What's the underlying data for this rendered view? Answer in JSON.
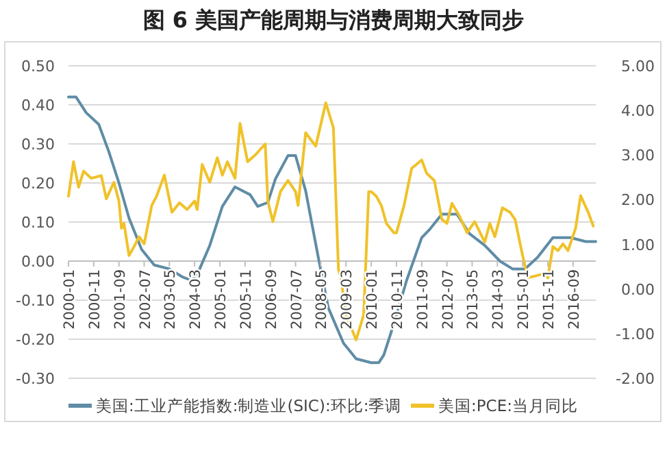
{
  "chart_data": {
    "type": "line",
    "title": "图 6  美国产能周期与消费周期大致同步",
    "xlim": [
      "2000-01",
      "2017-06"
    ],
    "xticks": [
      "2000-01",
      "2000-11",
      "2001-09",
      "2002-07",
      "2003-05",
      "2004-03",
      "2005-01",
      "2005-11",
      "2006-09",
      "2007-07",
      "2008-05",
      "2009-03",
      "2010-01",
      "2010-11",
      "2011-09",
      "2012-07",
      "2013-05",
      "2014-03",
      "2015-01",
      "2015-11",
      "2016-09"
    ],
    "ylim": [
      -0.3,
      0.5
    ],
    "yticks": [
      {
        "value": -0.3,
        "label": "-0.30"
      },
      {
        "value": -0.2,
        "label": "-0.20"
      },
      {
        "value": -0.1,
        "label": "-0.10"
      },
      {
        "value": 0,
        "label": "0.00"
      },
      {
        "value": 0.1,
        "label": "0.10"
      },
      {
        "value": 0.2,
        "label": "0.20"
      },
      {
        "value": 0.3,
        "label": "0.30"
      },
      {
        "value": 0.4,
        "label": "0.40"
      },
      {
        "value": 0.5,
        "label": "0.50"
      }
    ],
    "y2lim": [
      -2,
      5
    ],
    "y2ticks": [
      {
        "value": -2,
        "label": "-2.00"
      },
      {
        "value": -1,
        "label": "-1.00"
      },
      {
        "value": 0,
        "label": "0.00"
      },
      {
        "value": 1,
        "label": "1.00"
      },
      {
        "value": 2,
        "label": "2.00"
      },
      {
        "value": 3,
        "label": "3.00"
      },
      {
        "value": 4,
        "label": "4.00"
      },
      {
        "value": 5,
        "label": "5.00"
      }
    ],
    "grid": "y",
    "legend": "bottom",
    "marker": "none",
    "series": [
      {
        "name": "美国:工业产能指数:制造业(SIC):环比:季调",
        "color": "#5f8ca6",
        "axis": "y",
        "x": [
          "2000-01",
          "2000-04",
          "2000-08",
          "2001-01",
          "2001-05",
          "2001-09",
          "2002-01",
          "2002-06",
          "2002-11",
          "2003-05",
          "2003-10",
          "2004-02",
          "2004-05",
          "2004-09",
          "2005-02",
          "2005-07",
          "2006-01",
          "2006-04",
          "2006-08",
          "2006-11",
          "2007-04",
          "2007-07",
          "2007-11",
          "2008-04",
          "2008-08",
          "2009-02",
          "2009-07",
          "2010-01",
          "2010-04",
          "2010-06",
          "2010-10",
          "2011-03",
          "2011-09",
          "2011-12",
          "2012-05",
          "2012-11",
          "2013-04",
          "2013-10",
          "2014-04",
          "2014-09",
          "2015-02",
          "2015-07",
          "2016-01",
          "2016-08",
          "2017-02",
          "2017-06"
        ],
        "values": [
          0.42,
          0.42,
          0.38,
          0.35,
          0.28,
          0.2,
          0.11,
          0.03,
          -0.01,
          -0.02,
          -0.04,
          -0.05,
          -0.02,
          0.04,
          0.14,
          0.19,
          0.17,
          0.14,
          0.15,
          0.21,
          0.27,
          0.27,
          0.18,
          0.01,
          -0.12,
          -0.21,
          -0.25,
          -0.26,
          -0.26,
          -0.24,
          -0.16,
          -0.05,
          0.06,
          0.08,
          0.12,
          0.12,
          0.07,
          0.04,
          0.0,
          -0.02,
          -0.02,
          0.01,
          0.06,
          0.06,
          0.05,
          0.05
        ]
      },
      {
        "name": "美国:PCE:当月同比",
        "color": "#f0c22a",
        "axis": "y2",
        "x": [
          "2000-01",
          "2000-03",
          "2000-05",
          "2000-07",
          "2000-10",
          "2001-02",
          "2001-04",
          "2001-07",
          "2001-09",
          "2001-10",
          "2001-11",
          "2002-01",
          "2002-03",
          "2002-05",
          "2002-07",
          "2002-10",
          "2002-12",
          "2003-03",
          "2003-06",
          "2003-09",
          "2003-12",
          "2004-03",
          "2004-04",
          "2004-06",
          "2004-09",
          "2004-12",
          "2005-02",
          "2005-04",
          "2005-07",
          "2005-09",
          "2005-12",
          "2006-03",
          "2006-07",
          "2006-08",
          "2006-10",
          "2007-01",
          "2007-04",
          "2007-07",
          "2007-08",
          "2007-11",
          "2008-03",
          "2008-07",
          "2008-10",
          "2008-12",
          "2009-01",
          "2009-03",
          "2009-07",
          "2009-10",
          "2009-12",
          "2010-01",
          "2010-03",
          "2010-05",
          "2010-07",
          "2010-10",
          "2010-11",
          "2011-02",
          "2011-05",
          "2011-09",
          "2011-11",
          "2012-02",
          "2012-05",
          "2012-07",
          "2012-09",
          "2012-12",
          "2013-03",
          "2013-06",
          "2013-10",
          "2013-12",
          "2014-02",
          "2014-05",
          "2014-08",
          "2014-10",
          "2015-01",
          "2015-03",
          "2015-06",
          "2015-09",
          "2015-11",
          "2016-01",
          "2016-03",
          "2016-05",
          "2016-07",
          "2016-10",
          "2016-12",
          "2017-03",
          "2017-05"
        ],
        "values": [
          2.08,
          2.85,
          2.28,
          2.64,
          2.48,
          2.54,
          2.02,
          2.39,
          1.97,
          1.36,
          1.47,
          0.75,
          0.95,
          1.17,
          1.01,
          1.87,
          2.09,
          2.55,
          1.72,
          1.93,
          1.78,
          1.97,
          1.78,
          2.79,
          2.39,
          2.94,
          2.55,
          2.85,
          2.48,
          3.71,
          2.85,
          3.0,
          3.25,
          1.97,
          1.51,
          2.18,
          2.43,
          2.18,
          1.87,
          3.5,
          3.2,
          4.17,
          3.61,
          0.44,
          0.25,
          -0.58,
          -1.14,
          -0.58,
          2.18,
          2.18,
          2.08,
          1.87,
          1.47,
          1.26,
          1.26,
          1.87,
          2.7,
          2.89,
          2.59,
          2.43,
          1.56,
          1.47,
          1.92,
          1.63,
          1.26,
          1.51,
          1.05,
          1.47,
          1.17,
          1.82,
          1.72,
          1.56,
          0.75,
          0.25,
          0.29,
          0.34,
          0.25,
          0.95,
          0.86,
          1.01,
          0.86,
          1.36,
          2.09,
          1.72,
          1.41
        ]
      }
    ]
  }
}
